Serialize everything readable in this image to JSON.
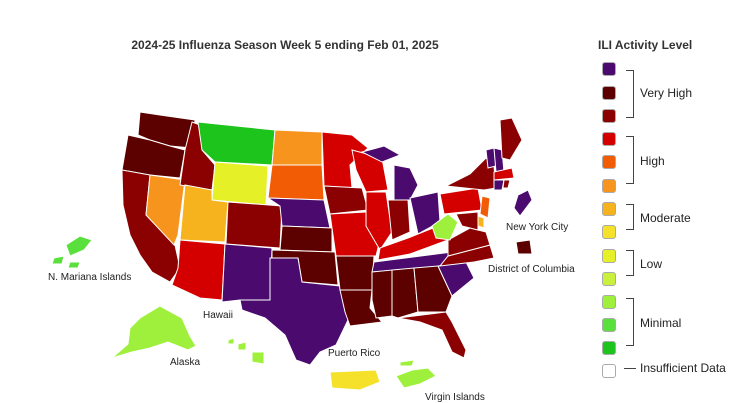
{
  "map": {
    "title": "2024-25 Influenza Season Week 5 ending Feb 01, 2025",
    "labels": {
      "nmi": "N. Mariana Islands",
      "hawaii": "Hawaii",
      "alaska": "Alaska",
      "puerto_rico": "Puerto Rico",
      "virgin_islands": "Virgin Islands",
      "nyc": "New York City",
      "dc": "District of Columbia"
    }
  },
  "legend": {
    "title": "ILI Activity Level",
    "swatches": [
      {
        "level": 13,
        "color": "#4b0a6e"
      },
      {
        "level": 12,
        "color": "#5c0000"
      },
      {
        "level": 11,
        "color": "#8b0000"
      },
      {
        "level": 10,
        "color": "#d40000"
      },
      {
        "level": 9,
        "color": "#f25c05"
      },
      {
        "level": 8,
        "color": "#f7941d"
      },
      {
        "level": 7,
        "color": "#f7b31d"
      },
      {
        "level": 6,
        "color": "#f5e02a"
      },
      {
        "level": 5,
        "color": "#e6f026"
      },
      {
        "level": 4,
        "color": "#c8f03c"
      },
      {
        "level": 3,
        "color": "#9ef03c"
      },
      {
        "level": 2,
        "color": "#5ae03c"
      },
      {
        "level": 1,
        "color": "#1cc41c"
      },
      {
        "level": 0,
        "color": "#ffffff"
      }
    ],
    "groups": [
      "Very High",
      "High",
      "Moderate",
      "Low",
      "Minimal",
      "Insufficient Data"
    ]
  }
}
